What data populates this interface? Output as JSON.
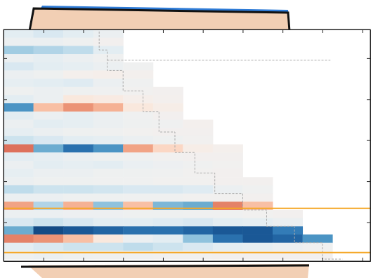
{
  "chart_data": {
    "type": "heatmap",
    "xlim": [
      0,
      9.2
    ],
    "ylim": [
      0,
      5.65
    ],
    "xticks": [
      1,
      2,
      3,
      4,
      5,
      6,
      7,
      8,
      9
    ],
    "yticks": [
      0.7,
      1.7,
      2.7,
      3.7,
      4.7
    ],
    "tick_labels": false,
    "color_range": [
      -1,
      1
    ],
    "x_edges": [
      0,
      0.75,
      1.5,
      2.25,
      3,
      3.75,
      4.5,
      5.25,
      6,
      6.75,
      7.5,
      8.25,
      9
    ],
    "y_edges": [
      0,
      0.2,
      0.4,
      0.6,
      0.8,
      1,
      1.2,
      1.4,
      1.6,
      1.8,
      2,
      2.2,
      2.4,
      2.6,
      2.8,
      3,
      3.2,
      3.4,
      3.6,
      3.8,
      4,
      4.2,
      4.4,
      4.6,
      4.8,
      5,
      5.2,
      5.4,
      5.6
    ],
    "cells": [
      [
        -0.1,
        -0.15,
        -0.1,
        -0.05,
        null,
        null,
        null,
        null,
        null,
        null,
        null,
        null
      ],
      [
        -0.05,
        -0.05,
        -0.03,
        0,
        null,
        null,
        null,
        null,
        null,
        null,
        null,
        null
      ],
      [
        -0.35,
        -0.3,
        -0.25,
        -0.1,
        null,
        null,
        null,
        null,
        null,
        null,
        null,
        null
      ],
      [
        -0.05,
        -0.08,
        -0.05,
        -0.02,
        null,
        null,
        null,
        null,
        null,
        null,
        null,
        null
      ],
      [
        -0.15,
        -0.1,
        -0.08,
        -0.05,
        -0.02,
        null,
        null,
        null,
        null,
        null,
        null,
        null
      ],
      [
        -0.05,
        -0.03,
        0.02,
        0.03,
        0.01,
        null,
        null,
        null,
        null,
        null,
        null,
        null
      ],
      [
        -0.08,
        -0.1,
        -0.12,
        -0.05,
        -0.02,
        null,
        null,
        null,
        null,
        null,
        null,
        null
      ],
      [
        -0.03,
        -0.05,
        -0.03,
        -0.02,
        -0.01,
        0,
        null,
        null,
        null,
        null,
        null,
        null
      ],
      [
        -0.1,
        -0.05,
        0.1,
        0.08,
        0.03,
        0.01,
        null,
        null,
        null,
        null,
        null,
        null
      ],
      [
        -0.6,
        0.3,
        0.45,
        0.35,
        0.1,
        0.05,
        null,
        null,
        null,
        null,
        null,
        null
      ],
      [
        -0.1,
        -0.05,
        -0.08,
        -0.05,
        -0.02,
        0,
        null,
        null,
        null,
        null,
        null,
        null
      ],
      [
        -0.05,
        -0.1,
        -0.08,
        -0.05,
        -0.03,
        -0.02,
        0.01,
        null,
        null,
        null,
        null,
        null
      ],
      [
        -0.08,
        -0.05,
        -0.03,
        -0.02,
        -0.01,
        0,
        0,
        null,
        null,
        null,
        null,
        null
      ],
      [
        -0.2,
        -0.15,
        -0.1,
        -0.08,
        -0.05,
        -0.03,
        -0.01,
        null,
        null,
        null,
        null,
        null
      ],
      [
        0.55,
        -0.5,
        -0.75,
        -0.6,
        0.4,
        0.2,
        0.05,
        0.02,
        null,
        null,
        null,
        null
      ],
      [
        -0.1,
        -0.08,
        -0.05,
        -0.03,
        -0.02,
        -0.01,
        0,
        0,
        null,
        null,
        null,
        null
      ],
      [
        -0.05,
        -0.1,
        -0.08,
        -0.1,
        -0.06,
        -0.04,
        -0.02,
        -0.01,
        null,
        null,
        null,
        null
      ],
      [
        -0.08,
        -0.05,
        -0.05,
        -0.03,
        -0.03,
        -0.02,
        -0.01,
        0,
        null,
        null,
        null,
        null
      ],
      [
        -0.05,
        -0.03,
        -0.03,
        -0.02,
        -0.02,
        -0.01,
        -0.01,
        0,
        0,
        null,
        null,
        null
      ],
      [
        -0.25,
        -0.2,
        -0.2,
        -0.18,
        -0.15,
        -0.15,
        -0.12,
        -0.05,
        -0.02,
        null,
        null,
        null
      ],
      [
        -0.05,
        -0.05,
        -0.03,
        -0.03,
        -0.02,
        -0.02,
        -0.01,
        -0.01,
        0,
        null,
        null,
        null
      ],
      [
        0.4,
        -0.3,
        0.35,
        -0.4,
        0.3,
        -0.45,
        -0.5,
        0.5,
        0.3,
        null,
        null,
        null
      ],
      [
        -0.05,
        -0.05,
        -0.04,
        -0.04,
        -0.03,
        -0.03,
        -0.02,
        -0.02,
        -0.01,
        0,
        null,
        null
      ],
      [
        -0.15,
        -0.2,
        -0.15,
        -0.1,
        -0.1,
        -0.12,
        -0.15,
        -0.1,
        -0.08,
        -0.05,
        null,
        null
      ],
      [
        -0.5,
        -0.9,
        -0.85,
        -0.8,
        -0.75,
        -0.75,
        -0.8,
        -0.85,
        -0.85,
        -0.7,
        null,
        null
      ],
      [
        0.5,
        0.45,
        0.3,
        0.1,
        -0.05,
        -0.1,
        -0.4,
        -0.75,
        -0.85,
        -0.8,
        -0.6,
        null
      ],
      [
        -0.1,
        -0.15,
        -0.2,
        -0.2,
        -0.25,
        -0.2,
        -0.15,
        -0.1,
        -0.08,
        -0.05,
        -0.02,
        null
      ],
      [
        -0.03,
        -0.05,
        -0.03,
        -0.02,
        -0.02,
        -0.01,
        -0.01,
        0,
        0,
        0,
        0,
        null
      ]
    ],
    "series": [
      {
        "type": "line",
        "color": "#aaaaaa",
        "line_style": "dashed",
        "x": [
          2.4,
          2.6,
          3.0,
          3.5,
          3.9,
          4.3,
          4.8,
          5.3,
          6.0,
          6.6,
          7.3,
          8.0,
          8.5
        ],
        "values": [
          0.05,
          0.5,
          1.0,
          1.5,
          2.0,
          2.5,
          3.0,
          3.5,
          4.0,
          4.4,
          4.8,
          5.2,
          5.6
        ]
      },
      {
        "type": "line",
        "color": "#aaaaaa",
        "line_style": "dashed",
        "x": [
          2.6,
          8.2
        ],
        "values": [
          0.75,
          0.75
        ]
      },
      {
        "type": "line",
        "color": "#f5a623",
        "line_style": "solid",
        "x": [
          0,
          9.2
        ],
        "values": [
          4.36,
          4.36
        ]
      },
      {
        "type": "line",
        "color": "#f5a623",
        "line_style": "solid",
        "x": [
          0,
          9.2
        ],
        "values": [
          5.44,
          5.44
        ]
      }
    ]
  }
}
